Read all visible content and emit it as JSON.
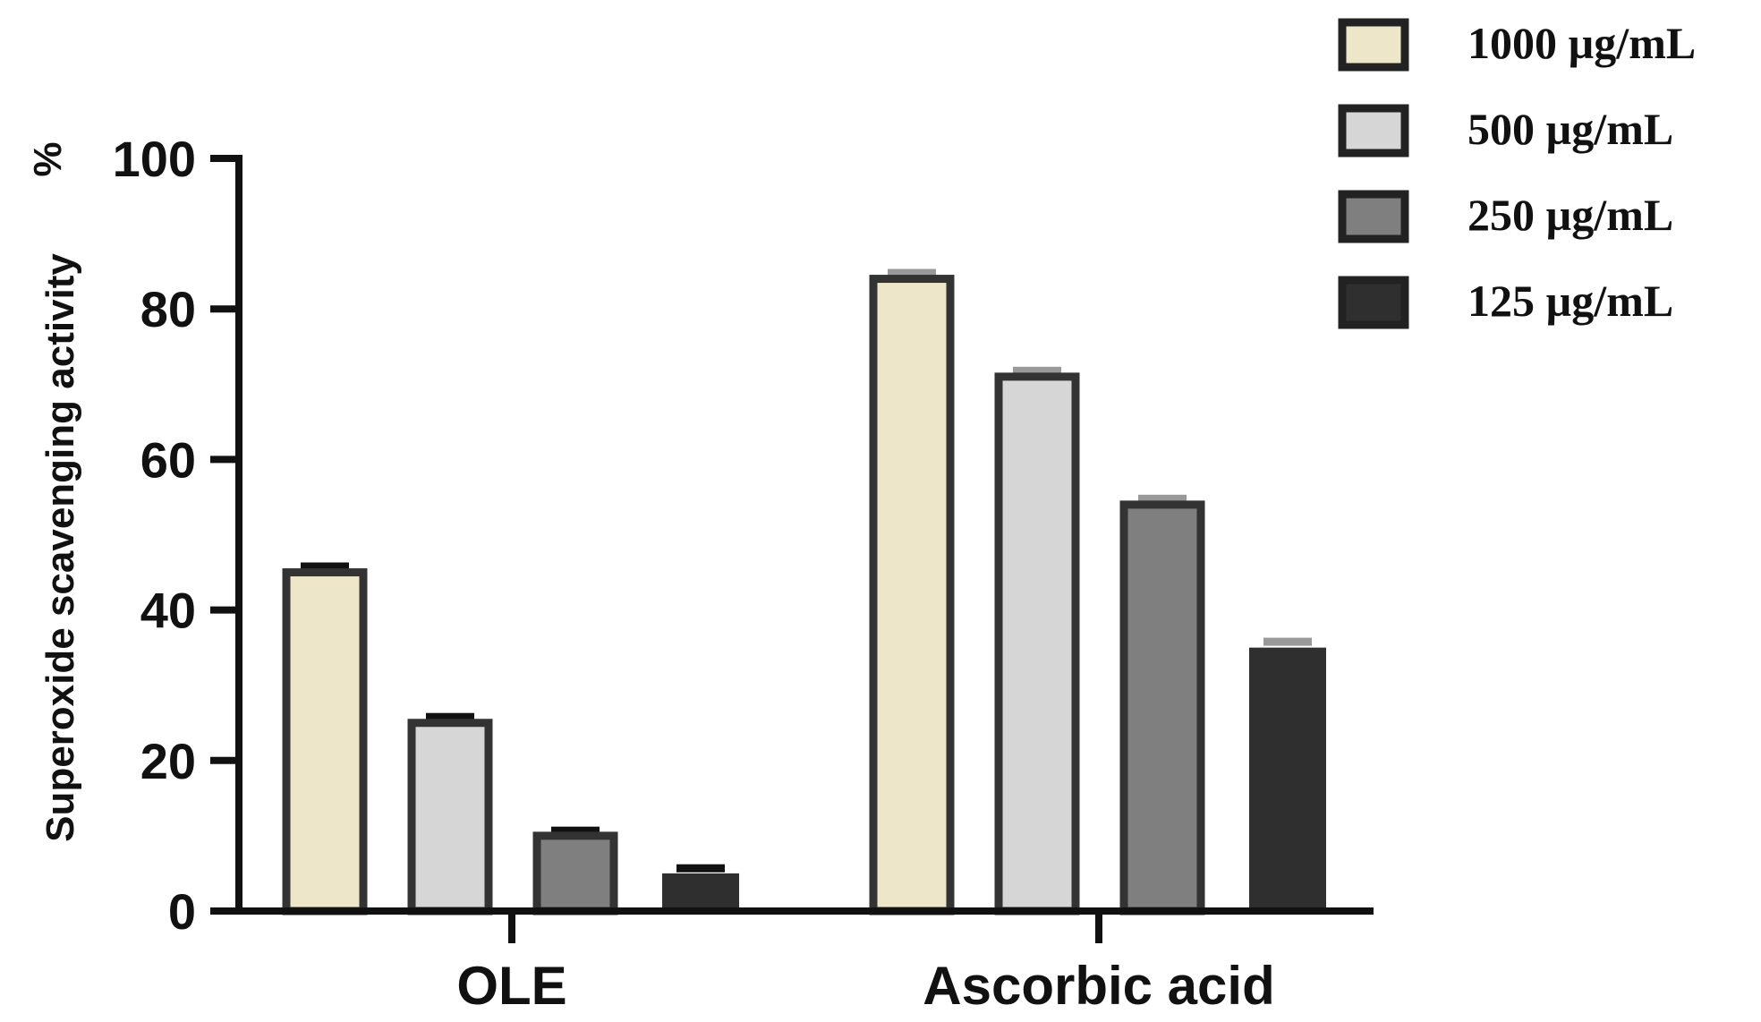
{
  "chart_data": {
    "type": "bar",
    "title": "",
    "xlabel": "",
    "ylabel": "Superoxide scavenging activity",
    "ylabel_unit": "%",
    "ylim": [
      0,
      100
    ],
    "yticks": [
      0,
      20,
      40,
      60,
      80,
      100
    ],
    "grid": false,
    "legend_position": "top-right",
    "categories": [
      "OLE",
      "Ascorbic acid"
    ],
    "series": [
      {
        "name": "1000 µg/mL",
        "values": [
          45,
          84
        ],
        "errors": [
          0.6,
          0.6
        ],
        "color": "#ede6c9"
      },
      {
        "name": "500 µg/mL",
        "values": [
          25,
          71
        ],
        "errors": [
          0.6,
          0.6
        ],
        "color": "#d6d6d6"
      },
      {
        "name": "250 µg/mL",
        "values": [
          10,
          54
        ],
        "errors": [
          0.5,
          0.6
        ],
        "color": "#7f7f7f"
      },
      {
        "name": "125 µg/mL",
        "values": [
          5,
          35
        ],
        "errors": [
          0.5,
          0.6
        ],
        "color": "#2f2f2f"
      }
    ],
    "edge_color": "#333333",
    "error_colors": [
      "#111111",
      "#999999"
    ]
  }
}
